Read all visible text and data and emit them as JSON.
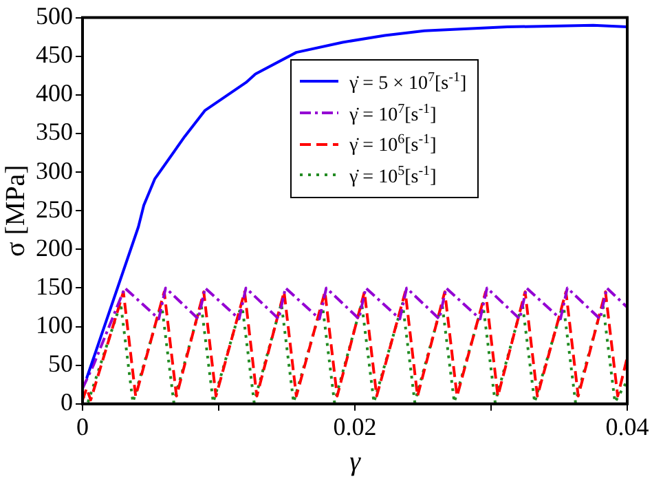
{
  "chart_data": {
    "type": "line",
    "xlabel": "γ",
    "ylabel": "σ [MPa]",
    "xlim": [
      0,
      0.04
    ],
    "ylim": [
      0,
      500
    ],
    "xticks": [
      0,
      {
        "value": 0.01,
        "label": null
      },
      0.02,
      {
        "value": 0.03,
        "label": null
      },
      0.04
    ],
    "yticks": [
      0,
      50,
      100,
      150,
      200,
      250,
      300,
      350,
      400,
      450,
      500
    ],
    "grid": false,
    "legend": "right",
    "marker": "none",
    "series": [
      {
        "name": "γ̇ = 5 × 10$^{7}$[s$^{-1}$]",
        "color": "#0000ff",
        "line_style": "solid",
        "x": [
          0.0003,
          0.0041,
          0.0045,
          0.0053,
          0.0075,
          0.009,
          0.012,
          0.0127,
          0.0157,
          0.0191,
          0.0222,
          0.0251,
          0.0312,
          0.0375,
          0.04
        ],
        "values": [
          33,
          229,
          257,
          291,
          346,
          380,
          416,
          427,
          455,
          468,
          477,
          483,
          488,
          490,
          488
        ]
      },
      {
        "name": "γ̇ = 10$^{7}$[s$^{-1}$]",
        "color": "#9400d3",
        "line_style": "dashdot",
        "x": [
          0,
          0.0008,
          0.0031,
          0.0056,
          0.0061,
          0.0085,
          0.009,
          0.0115,
          0.012,
          0.0144,
          0.0149,
          0.0174,
          0.0179,
          0.0203,
          0.0208,
          0.0233,
          0.0238,
          0.0262,
          0.0267,
          0.0292,
          0.0297,
          0.0321,
          0.0326,
          0.0351,
          0.0356,
          0.038,
          0.0385,
          0.04
        ],
        "values": [
          20,
          50,
          150,
          110,
          150,
          110,
          150,
          110,
          150,
          110,
          150,
          110,
          150,
          110,
          150,
          110,
          150,
          110,
          150,
          110,
          150,
          110,
          150,
          110,
          150,
          110,
          150,
          125
        ]
      },
      {
        "name": "γ̇ = 10$^{6}$[s$^{-1}$]",
        "color": "#ff0000",
        "line_style": "dashed",
        "x": [
          0,
          0.0003,
          0.0006,
          0.003,
          0.0039,
          0.006,
          0.0069,
          0.0089,
          0.0098,
          0.0119,
          0.0128,
          0.0148,
          0.0157,
          0.0178,
          0.0187,
          0.0207,
          0.0216,
          0.0237,
          0.0246,
          0.0266,
          0.0275,
          0.0296,
          0.0305,
          0.0325,
          0.0334,
          0.0355,
          0.0364,
          0.0384,
          0.0393,
          0.04
        ],
        "values": [
          5,
          20,
          5,
          145,
          10,
          145,
          10,
          145,
          10,
          145,
          10,
          145,
          10,
          145,
          10,
          145,
          10,
          145,
          10,
          145,
          10,
          145,
          10,
          145,
          10,
          145,
          10,
          145,
          10,
          60
        ]
      },
      {
        "name": "γ̇ = 10$^{5}$[s$^{-1}$]",
        "color": "#228b22",
        "line_style": "dotted",
        "x": [
          0,
          0.0004,
          0.0028,
          0.0037,
          0.0058,
          0.0067,
          0.0087,
          0.0096,
          0.0117,
          0.0126,
          0.0146,
          0.0155,
          0.0176,
          0.0185,
          0.0205,
          0.0214,
          0.0235,
          0.0244,
          0.0264,
          0.0273,
          0.0294,
          0.0303,
          0.0323,
          0.0332,
          0.0353,
          0.0362,
          0.0382,
          0.0391,
          0.04
        ],
        "values": [
          10,
          2,
          130,
          2,
          130,
          2,
          130,
          2,
          130,
          2,
          130,
          2,
          130,
          2,
          130,
          2,
          130,
          2,
          130,
          2,
          130,
          2,
          130,
          2,
          130,
          2,
          130,
          2,
          30
        ]
      }
    ]
  }
}
